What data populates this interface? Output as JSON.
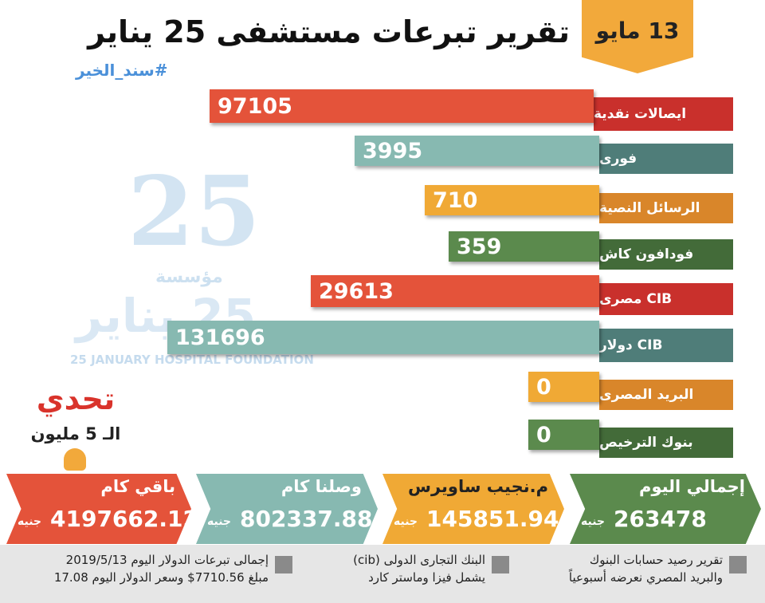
{
  "header": {
    "date": "13 مايو",
    "title": "تقرير تبرعات مستشفى 25 يناير",
    "hashtag": "#سند_الخير"
  },
  "watermark": {
    "number": "25",
    "word": "مؤسسة",
    "arabic_name": "25 يناير",
    "english_name": "25 JANUARY HOSPITAL FOUNDATION"
  },
  "rows": [
    {
      "label": "ايصالات نقدية",
      "value": 97105
    },
    {
      "label": "فورى",
      "value": 3995
    },
    {
      "label": "الرسائل النصية",
      "value": 710
    },
    {
      "label": "فودافون كاش",
      "value": 359
    },
    {
      "label": "CIB مصرى",
      "value": 29613
    },
    {
      "label": "CIB دولار",
      "value": 131696
    },
    {
      "label": "البريد المصرى",
      "value": 0
    },
    {
      "label": "بنوك الترخيص",
      "value": 0
    }
  ],
  "challenge": {
    "title": "تحدي",
    "subtitle": "الـ 5 مليون"
  },
  "totals": [
    {
      "label": "إجمالي اليوم",
      "value": 263478,
      "unit": "جنيه"
    },
    {
      "label": "م.نجيب ساويرس",
      "value": 145851.94,
      "unit": "جنيه"
    },
    {
      "label": "وصلنا كام",
      "value": 802337.88,
      "unit": "جنيه"
    },
    {
      "label": "باقي كام",
      "value": 4197662.12,
      "unit": "جنيه"
    }
  ],
  "notes": [
    [
      "تقرير رصيد حسابات البنوك",
      "والبريد المصري نعرضه أسبوعياً"
    ],
    [
      "البنك التجارى الدولى (cib)",
      "يشمل فيزا وماستر كارد"
    ],
    [
      "إجمالى تبرعات الدولار اليوم 2019/5/13",
      "مبلغ 7710.56$ وسعر الدولار اليوم 17.08"
    ]
  ]
}
